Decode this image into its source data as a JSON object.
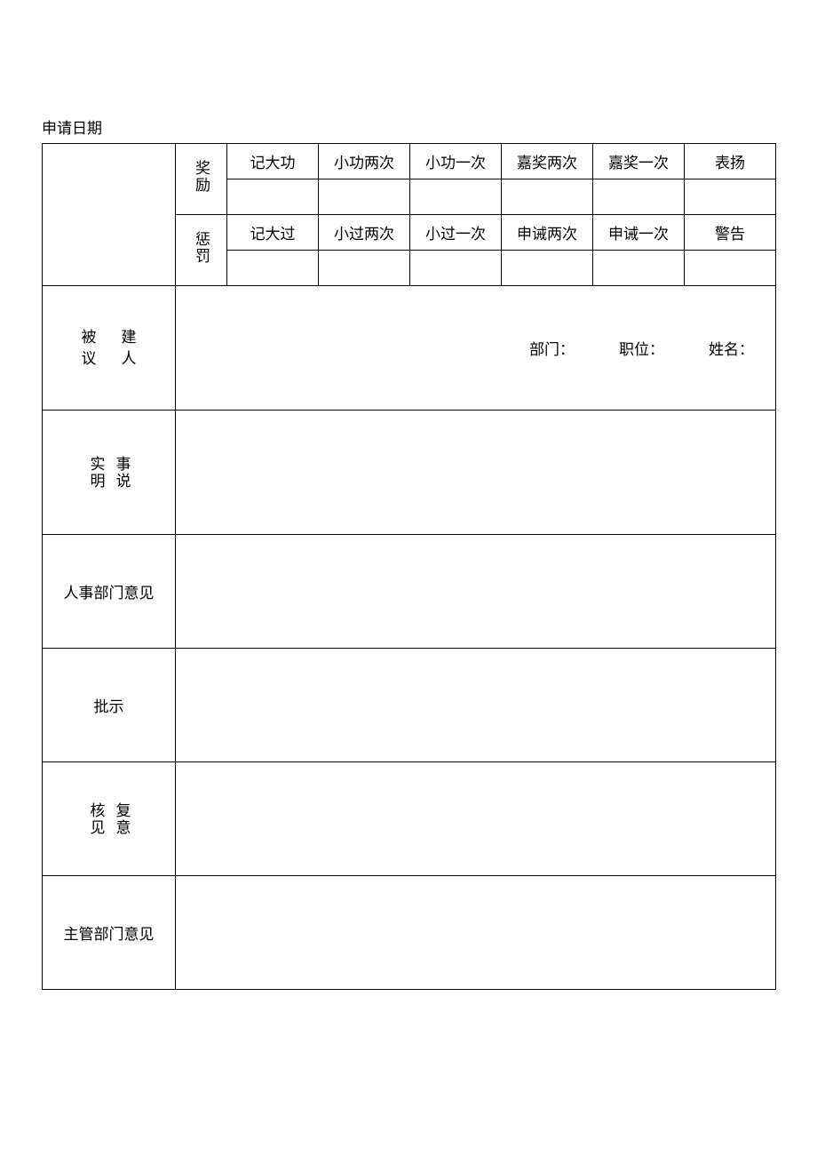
{
  "header": {
    "dateLabel": "申请日期"
  },
  "rewards": {
    "categoryLabel": "奖励",
    "items": [
      "记大功",
      "小功两次",
      "小功一次",
      "嘉奖两次",
      "嘉奖一次",
      "表扬"
    ]
  },
  "punishments": {
    "categoryLabel": "惩罚",
    "items": [
      "记大过",
      "小过两次",
      "小过一次",
      "申诫两次",
      "申诫一次",
      "警告"
    ]
  },
  "proposedPerson": {
    "label1_col1": "被",
    "label1_col2": "建",
    "label2_col1": "议",
    "label2_col2": "人",
    "department": "部门：",
    "position": "职位：",
    "name": "姓名："
  },
  "facts": {
    "label_col1": "实明",
    "label_col2": "事说"
  },
  "hrOpinion": {
    "label": "人事部门意见"
  },
  "approval": {
    "label": "批示"
  },
  "review": {
    "label_col1": "核见",
    "label_col2": "复意"
  },
  "supervisorOpinion": {
    "label": "主管部门意见"
  },
  "styling": {
    "borderColor": "#000000",
    "backgroundColor": "#ffffff",
    "textColor": "#000000",
    "fontSize": 17,
    "tableWidth": 826,
    "labelColWidth": 150,
    "categoryColWidth": 58,
    "itemColWidth": 103
  }
}
